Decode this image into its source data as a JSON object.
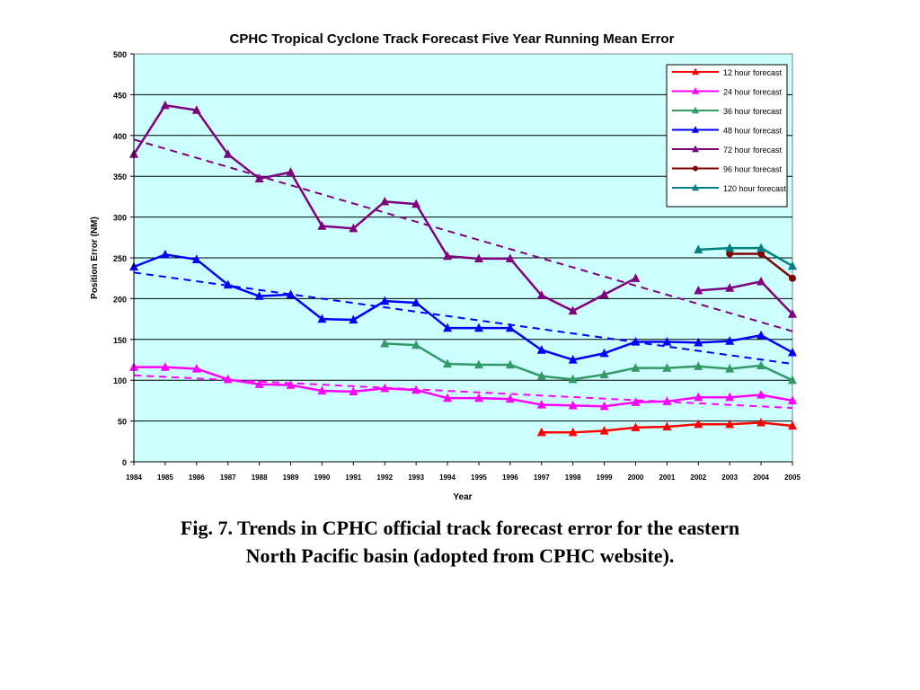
{
  "caption": {
    "line1": "Fig. 7. Trends in CPHC official track forecast error for the eastern",
    "line2": "North Pacific basin (adopted from CPHC website)."
  },
  "chart_data": {
    "type": "line",
    "title": "CPHC Tropical Cyclone Track Forecast Five Year Running Mean Error",
    "xlabel": "Year",
    "ylabel": "Position Error (NM)",
    "ylim": [
      0,
      500
    ],
    "yticks": [
      0,
      50,
      100,
      150,
      200,
      250,
      300,
      350,
      400,
      450,
      500
    ],
    "ytick_labels": [
      "0",
      "50",
      "100",
      "150",
      "200",
      "250",
      "300",
      "350",
      "400",
      "450",
      "500"
    ],
    "categories": [
      "1984",
      "1985",
      "1986",
      "1987",
      "1988",
      "1989",
      "1990",
      "1991",
      "1992",
      "1993",
      "1994",
      "1995",
      "1996",
      "1997",
      "1998",
      "1999",
      "2000",
      "2001",
      "2002",
      "2003",
      "2004",
      "2005"
    ],
    "grid": true,
    "legend_position": "top-right",
    "plot_background": "#ccffff",
    "series": [
      {
        "name": "12 hour forecast",
        "color": "#ff0000",
        "marker": "triangle",
        "values": [
          null,
          null,
          null,
          null,
          null,
          null,
          null,
          null,
          null,
          null,
          null,
          null,
          null,
          36,
          36,
          38,
          42,
          43,
          46,
          46,
          48,
          44
        ]
      },
      {
        "name": "24 hour forecast",
        "color": "#ff00ff",
        "marker": "triangle",
        "values": [
          116,
          116,
          114,
          101,
          95,
          94,
          87,
          86,
          90,
          88,
          78,
          78,
          77,
          70,
          69,
          68,
          73,
          74,
          79,
          79,
          82,
          75
        ]
      },
      {
        "name": "36 hour forecast",
        "color": "#339966",
        "marker": "triangle",
        "values": [
          null,
          null,
          null,
          null,
          null,
          null,
          null,
          null,
          145,
          143,
          120,
          119,
          119,
          105,
          101,
          107,
          115,
          115,
          117,
          114,
          118,
          100
        ]
      },
      {
        "name": "48 hour forecast",
        "color": "#0000ff",
        "marker": "triangle",
        "values": [
          239,
          254,
          248,
          217,
          203,
          205,
          175,
          174,
          197,
          195,
          164,
          164,
          164,
          137,
          125,
          133,
          147,
          147,
          146,
          148,
          155,
          134
        ]
      },
      {
        "name": "72 hour forecast",
        "color": "#800080",
        "marker": "triangle",
        "values": [
          377,
          437,
          431,
          377,
          347,
          355,
          289,
          286,
          319,
          316,
          252,
          249,
          249,
          204,
          185,
          205,
          225,
          null,
          210,
          213,
          221,
          181
        ]
      },
      {
        "name": "96 hour forecast",
        "color": "#800000",
        "marker": "circle",
        "values": [
          null,
          null,
          null,
          null,
          null,
          null,
          null,
          null,
          null,
          null,
          null,
          null,
          null,
          null,
          null,
          null,
          null,
          null,
          null,
          255,
          255,
          225
        ]
      },
      {
        "name": "120 hour forecast",
        "color": "#008080",
        "marker": "triangle",
        "values": [
          null,
          null,
          null,
          null,
          null,
          null,
          null,
          null,
          null,
          null,
          null,
          null,
          null,
          null,
          null,
          null,
          null,
          null,
          260,
          262,
          262,
          240
        ]
      }
    ],
    "trendlines": [
      {
        "of": "24 hour forecast",
        "color": "#ff00ff",
        "start": [
          1984,
          106
        ],
        "end": [
          2005,
          66
        ]
      },
      {
        "of": "48 hour forecast",
        "color": "#0000ff",
        "start": [
          1984,
          232
        ],
        "end": [
          2005,
          120
        ]
      },
      {
        "of": "72 hour forecast",
        "color": "#800080",
        "start": [
          1984,
          395
        ],
        "end": [
          2005,
          160
        ]
      }
    ]
  }
}
